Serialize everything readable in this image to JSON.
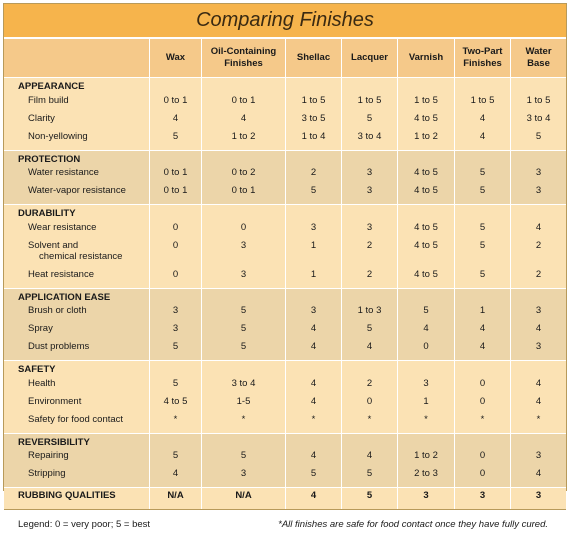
{
  "title": "Comparing Finishes",
  "columns": [
    "Wax",
    "Oil-Containing Finishes",
    "Shellac",
    "Lacquer",
    "Varnish",
    "Two-Part Finishes",
    "Water Base"
  ],
  "sections": [
    {
      "name": "APPEARANCE",
      "rows": [
        {
          "label": "Film build",
          "values": [
            "0 to 1",
            "0 to 1",
            "1 to 5",
            "1 to 5",
            "1 to 5",
            "1 to 5",
            "1 to 5"
          ]
        },
        {
          "label": "Clarity",
          "values": [
            "4",
            "4",
            "3 to 5",
            "5",
            "4 to 5",
            "4",
            "3 to 4"
          ]
        },
        {
          "label": "Non-yellowing",
          "values": [
            "5",
            "1 to 2",
            "1 to 4",
            "3 to 4",
            "1 to 2",
            "4",
            "5"
          ]
        }
      ]
    },
    {
      "name": "PROTECTION",
      "rows": [
        {
          "label": "Water resistance",
          "values": [
            "0 to 1",
            "0 to 2",
            "2",
            "3",
            "4 to 5",
            "5",
            "3"
          ]
        },
        {
          "label": "Water-vapor resistance",
          "values": [
            "0 to 1",
            "0 to 1",
            "5",
            "3",
            "4 to 5",
            "5",
            "3"
          ]
        }
      ]
    },
    {
      "name": "DURABILITY",
      "rows": [
        {
          "label": "Wear resistance",
          "values": [
            "0",
            "0",
            "3",
            "3",
            "4 to 5",
            "5",
            "4"
          ]
        },
        {
          "label": "Solvent and chemical resistance",
          "label_lines": [
            "Solvent and",
            "chemical resistance"
          ],
          "values": [
            "0",
            "3",
            "1",
            "2",
            "4 to 5",
            "5",
            "2"
          ]
        },
        {
          "label": "Heat resistance",
          "values": [
            "0",
            "3",
            "1",
            "2",
            "4 to 5",
            "5",
            "2"
          ]
        }
      ]
    },
    {
      "name": "APPLICATION EASE",
      "rows": [
        {
          "label": "Brush or cloth",
          "values": [
            "3",
            "5",
            "3",
            "1 to 3",
            "5",
            "1",
            "3"
          ]
        },
        {
          "label": "Spray",
          "values": [
            "3",
            "5",
            "4",
            "5",
            "4",
            "4",
            "4"
          ]
        },
        {
          "label": "Dust problems",
          "values": [
            "5",
            "5",
            "4",
            "4",
            "0",
            "4",
            "3"
          ]
        }
      ]
    },
    {
      "name": "SAFETY",
      "rows": [
        {
          "label": "Health",
          "values": [
            "5",
            "3 to 4",
            "4",
            "2",
            "3",
            "0",
            "4"
          ]
        },
        {
          "label": "Environment",
          "values": [
            "4 to 5",
            "1-5",
            "4",
            "0",
            "1",
            "0",
            "4"
          ]
        },
        {
          "label": "Safety for food contact",
          "values": [
            "*",
            "*",
            "*",
            "*",
            "*",
            "*",
            "*"
          ]
        }
      ]
    },
    {
      "name": "REVERSIBILITY",
      "rows": [
        {
          "label": "Repairing",
          "values": [
            "5",
            "5",
            "4",
            "4",
            "1 to 2",
            "0",
            "3"
          ]
        },
        {
          "label": "Stripping",
          "values": [
            "4",
            "3",
            "5",
            "5",
            "2 to 3",
            "0",
            "4"
          ]
        }
      ]
    },
    {
      "name": "RUBBING QUALITIES",
      "values": [
        "N/A",
        "N/A",
        "4",
        "5",
        "3",
        "3",
        "3"
      ]
    }
  ],
  "legend": "Legend: 0 = very poor; 5 = best",
  "footnote": "*All finishes are safe for food contact once they have fully cured.",
  "colors": {
    "title_bar": "#f6b44c",
    "header": "#f5c98a",
    "band_cream": "#fbe2b4",
    "band_tan": "#ecd5a9"
  }
}
